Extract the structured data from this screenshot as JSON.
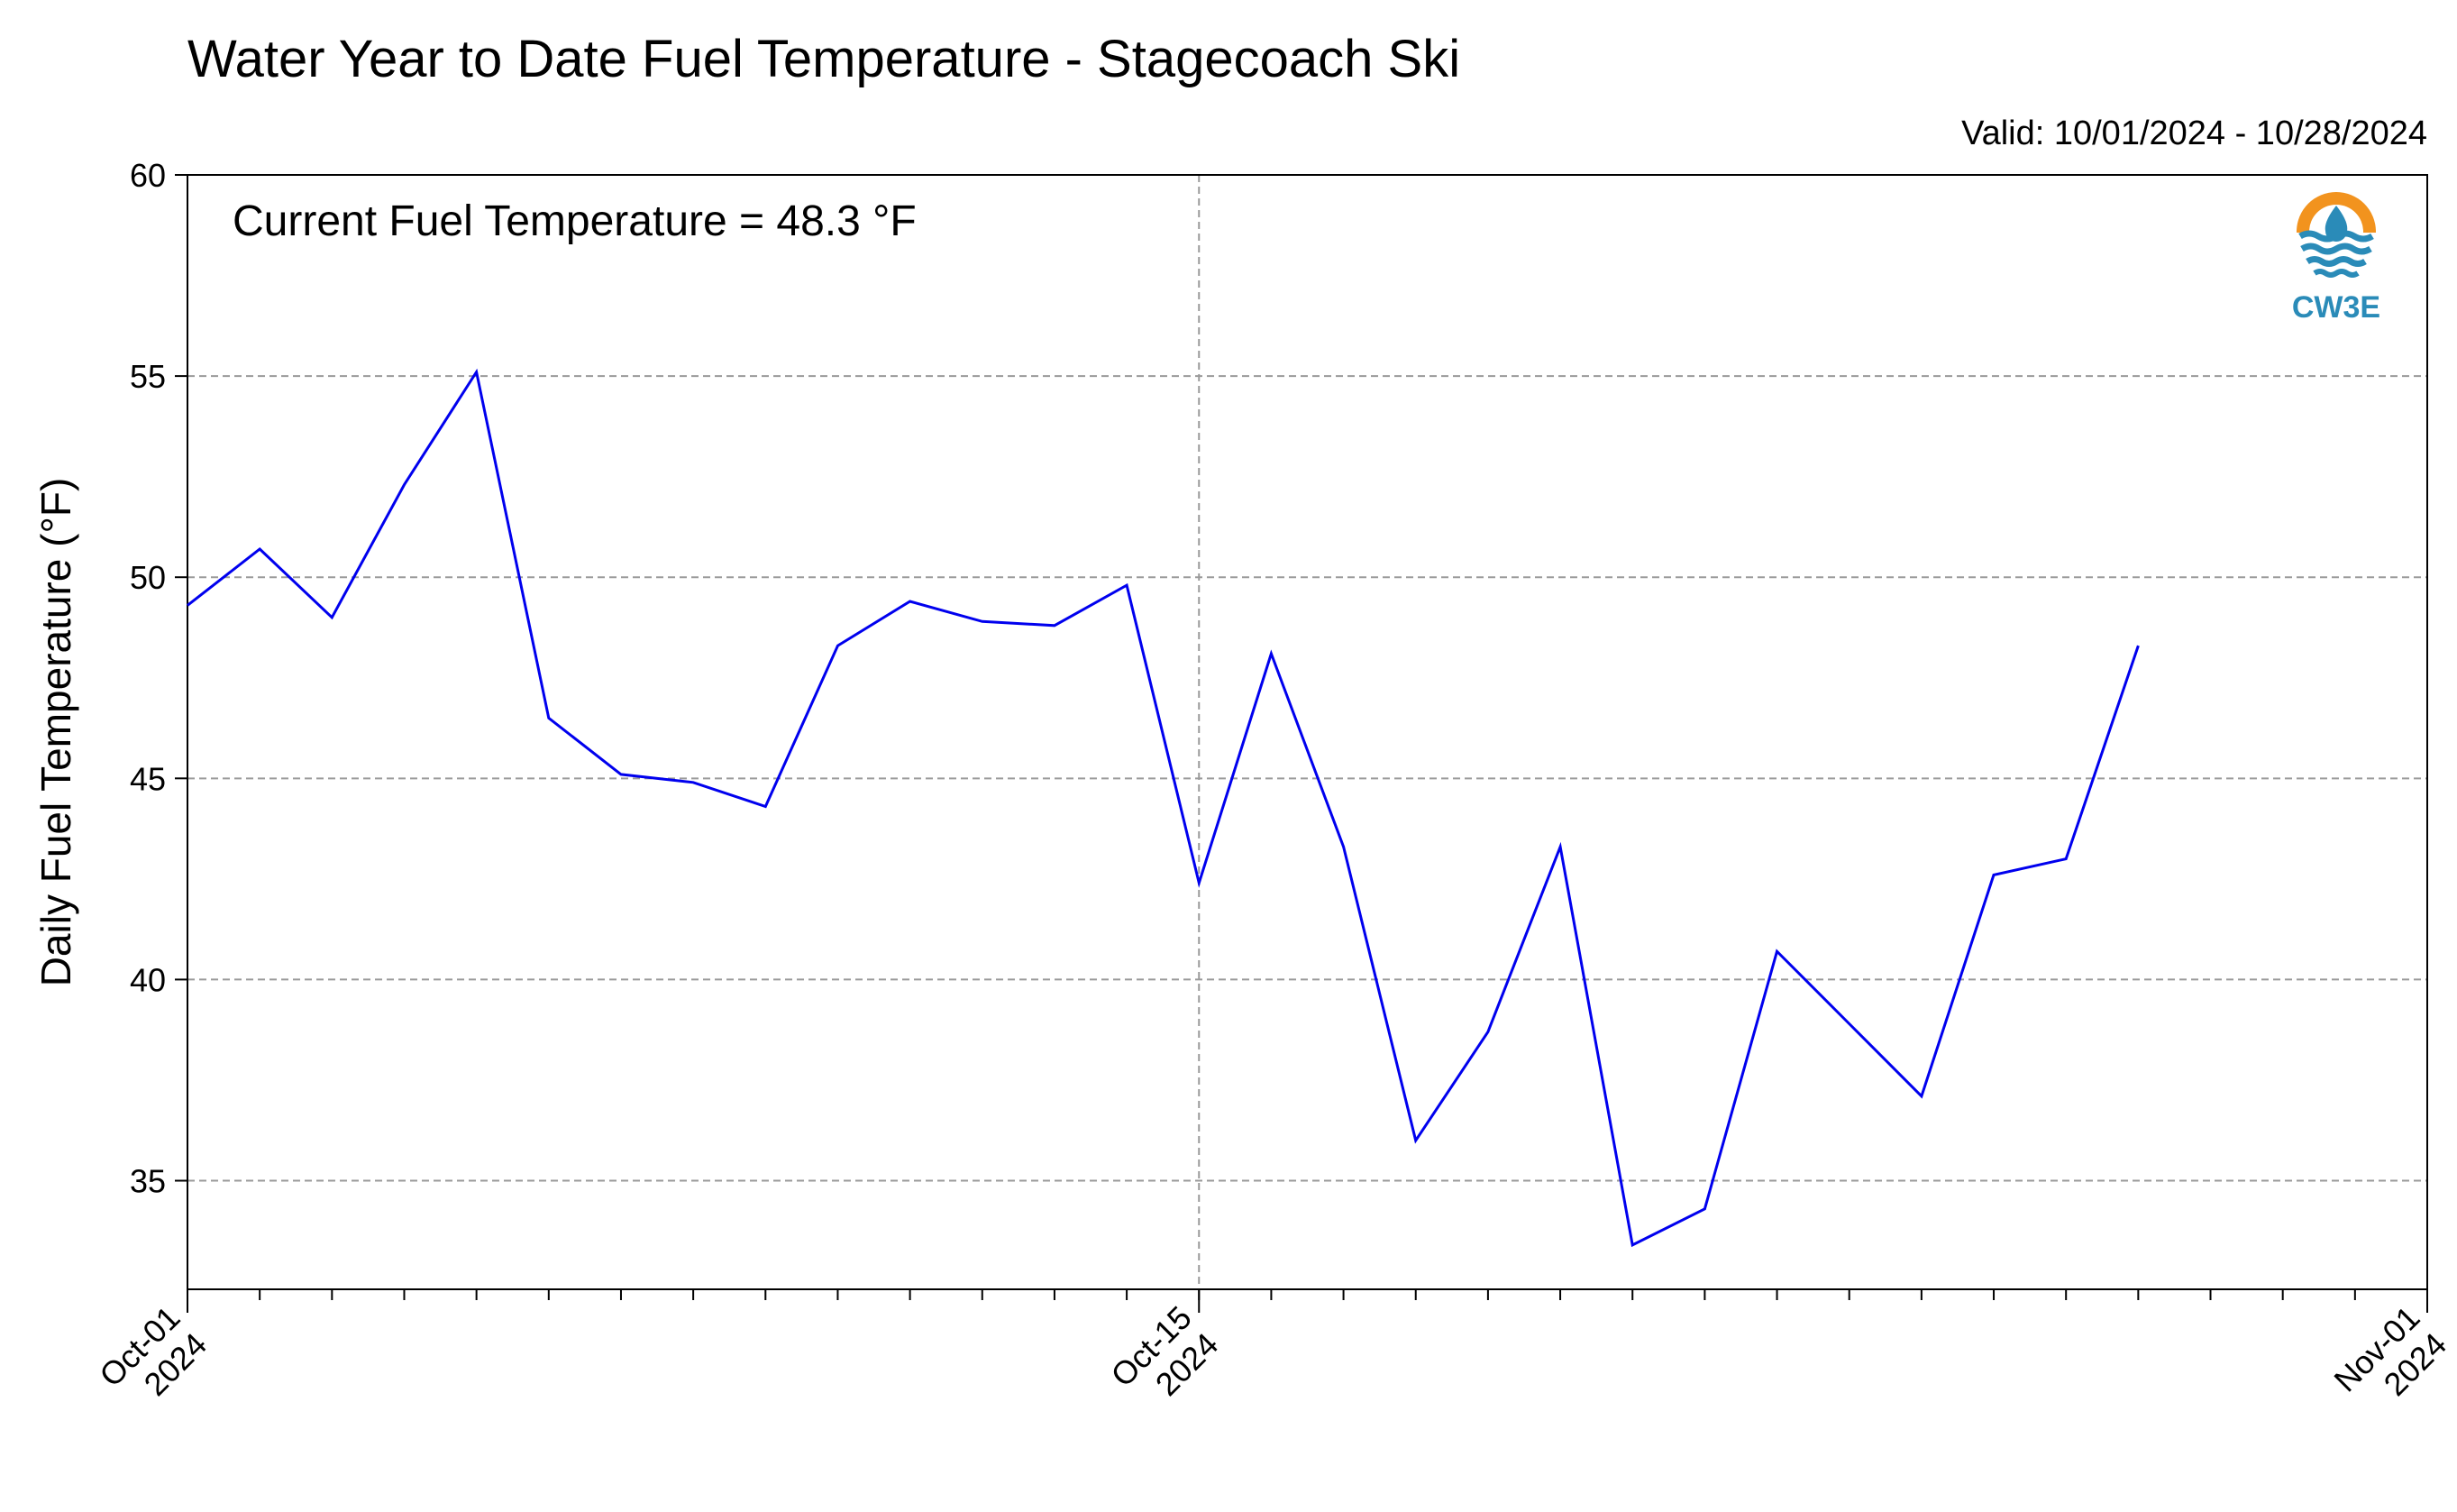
{
  "title": "Water Year to Date Fuel Temperature - Stagecoach Ski",
  "valid_text": "Valid: 10/01/2024 - 10/28/2024",
  "annotation": "Current Fuel Temperature = 48.3 °F",
  "logo": {
    "text": "CW3E",
    "icon": "water-drop-sun-logo",
    "accent": "#f2931e",
    "brand": "#2a8bb8"
  },
  "colors": {
    "line": "#0000ee",
    "grid": "#9a9a9a"
  },
  "chart_data": {
    "type": "line",
    "title": "Water Year to Date Fuel Temperature - Stagecoach Ski",
    "xlabel": "",
    "ylabel": "Daily Fuel Temperature (°F)",
    "ylim": [
      32.3,
      60
    ],
    "xlim": [
      "2024-10-01",
      "2024-11-01"
    ],
    "grid": true,
    "yticks": [
      35,
      40,
      45,
      50,
      55,
      60
    ],
    "xtick_labels": [
      {
        "date": "2024-10-01",
        "line1": "Oct-01",
        "line2": "2024"
      },
      {
        "date": "2024-10-15",
        "line1": "Oct-15",
        "line2": "2024"
      },
      {
        "date": "2024-11-01",
        "line1": "Nov-01",
        "line2": "2024"
      }
    ],
    "x": [
      "2024-10-01",
      "2024-10-02",
      "2024-10-03",
      "2024-10-04",
      "2024-10-05",
      "2024-10-06",
      "2024-10-07",
      "2024-10-08",
      "2024-10-09",
      "2024-10-10",
      "2024-10-11",
      "2024-10-12",
      "2024-10-13",
      "2024-10-14",
      "2024-10-15",
      "2024-10-16",
      "2024-10-17",
      "2024-10-18",
      "2024-10-19",
      "2024-10-20",
      "2024-10-21",
      "2024-10-22",
      "2024-10-23",
      "2024-10-24",
      "2024-10-25",
      "2024-10-26",
      "2024-10-27",
      "2024-10-28"
    ],
    "series": [
      {
        "values": [
          49.3,
          50.7,
          49.0,
          52.3,
          55.1,
          46.5,
          45.1,
          44.9,
          44.3,
          48.3,
          49.4,
          48.9,
          48.8,
          49.8,
          42.4,
          48.1,
          43.3,
          36.0,
          38.7,
          43.3,
          33.4,
          34.3,
          40.7,
          38.9,
          37.1,
          42.6,
          43.0,
          48.3
        ]
      }
    ]
  }
}
